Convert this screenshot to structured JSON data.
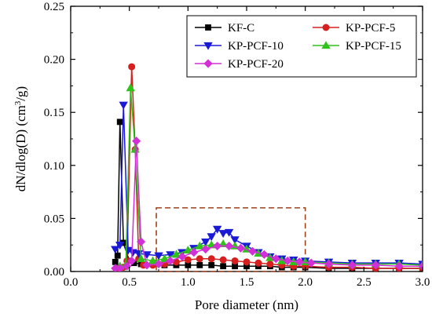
{
  "chart_data": {
    "type": "line",
    "xlabel": "Pore diameter (nm)",
    "ylabel_main": "dN/dlog(D) (cm",
    "ylabel_sup": "3",
    "ylabel_tail": "/g)",
    "xlim": [
      0.0,
      3.0
    ],
    "ylim": [
      0.0,
      0.25
    ],
    "x_ticks": [
      "0.0",
      "0.5",
      "1.0",
      "1.5",
      "2.0",
      "2.5",
      "3.0"
    ],
    "y_ticks": [
      "0.00",
      "0.05",
      "0.10",
      "0.15",
      "0.20",
      "0.25"
    ],
    "legend_position": "top-right",
    "highlight_box": {
      "x": [
        0.73,
        2.0
      ],
      "y": [
        0.0,
        0.06
      ],
      "color": "#a0401a"
    },
    "series": [
      {
        "name": "KF-C",
        "color": "#000000",
        "marker": "square",
        "x": [
          0.38,
          0.4,
          0.42,
          0.45,
          0.5,
          0.54,
          0.6,
          0.7,
          0.8,
          0.9,
          1.0,
          1.1,
          1.2,
          1.3,
          1.4,
          1.5,
          1.6,
          1.7,
          1.8,
          1.9,
          2.0,
          2.2,
          2.4,
          2.6,
          2.8,
          3.0
        ],
        "y": [
          0.009,
          0.015,
          0.141,
          0.027,
          0.01,
          0.008,
          0.007,
          0.007,
          0.006,
          0.006,
          0.006,
          0.006,
          0.006,
          0.005,
          0.005,
          0.005,
          0.005,
          0.005,
          0.004,
          0.004,
          0.004,
          0.003,
          0.003,
          0.003,
          0.003,
          0.003
        ]
      },
      {
        "name": "KP-PCF-5",
        "color": "#d62020",
        "marker": "circle",
        "x": [
          0.4,
          0.45,
          0.48,
          0.52,
          0.55,
          0.58,
          0.62,
          0.7,
          0.8,
          0.9,
          1.0,
          1.1,
          1.2,
          1.3,
          1.4,
          1.5,
          1.6,
          1.7,
          1.8,
          1.9,
          2.0,
          2.2,
          2.4,
          2.6,
          2.8,
          3.0
        ],
        "y": [
          0.003,
          0.004,
          0.01,
          0.193,
          0.115,
          0.012,
          0.006,
          0.006,
          0.007,
          0.009,
          0.011,
          0.012,
          0.012,
          0.011,
          0.01,
          0.009,
          0.008,
          0.007,
          0.006,
          0.005,
          0.005,
          0.004,
          0.004,
          0.003,
          0.003,
          0.003
        ]
      },
      {
        "name": "KP-PCF-10",
        "color": "#1a1ad6",
        "marker": "triangle-down",
        "x": [
          0.38,
          0.42,
          0.45,
          0.49,
          0.53,
          0.58,
          0.65,
          0.75,
          0.85,
          0.95,
          1.05,
          1.15,
          1.2,
          1.25,
          1.3,
          1.35,
          1.4,
          1.5,
          1.6,
          1.7,
          1.8,
          1.9,
          2.0,
          2.2,
          2.4,
          2.6,
          2.8,
          3.0
        ],
        "y": [
          0.021,
          0.025,
          0.157,
          0.02,
          0.018,
          0.017,
          0.016,
          0.015,
          0.016,
          0.018,
          0.022,
          0.028,
          0.033,
          0.04,
          0.036,
          0.037,
          0.03,
          0.024,
          0.018,
          0.014,
          0.012,
          0.011,
          0.01,
          0.009,
          0.008,
          0.008,
          0.008,
          0.007
        ]
      },
      {
        "name": "KP-PCF-15",
        "color": "#2ec21a",
        "marker": "triangle-up",
        "x": [
          0.42,
          0.47,
          0.51,
          0.55,
          0.6,
          0.7,
          0.8,
          0.9,
          1.0,
          1.1,
          1.2,
          1.3,
          1.4,
          1.5,
          1.6,
          1.7,
          1.8,
          1.9,
          2.0,
          2.2,
          2.4,
          2.6,
          2.8,
          3.0
        ],
        "y": [
          0.005,
          0.006,
          0.173,
          0.115,
          0.012,
          0.01,
          0.012,
          0.016,
          0.02,
          0.024,
          0.025,
          0.026,
          0.024,
          0.021,
          0.017,
          0.013,
          0.01,
          0.009,
          0.009,
          0.008,
          0.007,
          0.007,
          0.007,
          0.006
        ]
      },
      {
        "name": "KP-PCF-20",
        "color": "#d22fd6",
        "marker": "diamond",
        "x": [
          0.38,
          0.42,
          0.48,
          0.52,
          0.56,
          0.6,
          0.65,
          0.75,
          0.85,
          0.95,
          1.05,
          1.15,
          1.25,
          1.35,
          1.45,
          1.55,
          1.65,
          1.75,
          1.85,
          1.95,
          2.05,
          2.2,
          2.4,
          2.6,
          2.8,
          3.0
        ],
        "y": [
          0.003,
          0.003,
          0.005,
          0.01,
          0.123,
          0.028,
          0.006,
          0.007,
          0.01,
          0.014,
          0.018,
          0.021,
          0.024,
          0.024,
          0.022,
          0.019,
          0.016,
          0.012,
          0.01,
          0.009,
          0.008,
          0.007,
          0.006,
          0.006,
          0.005,
          0.005
        ]
      }
    ]
  }
}
